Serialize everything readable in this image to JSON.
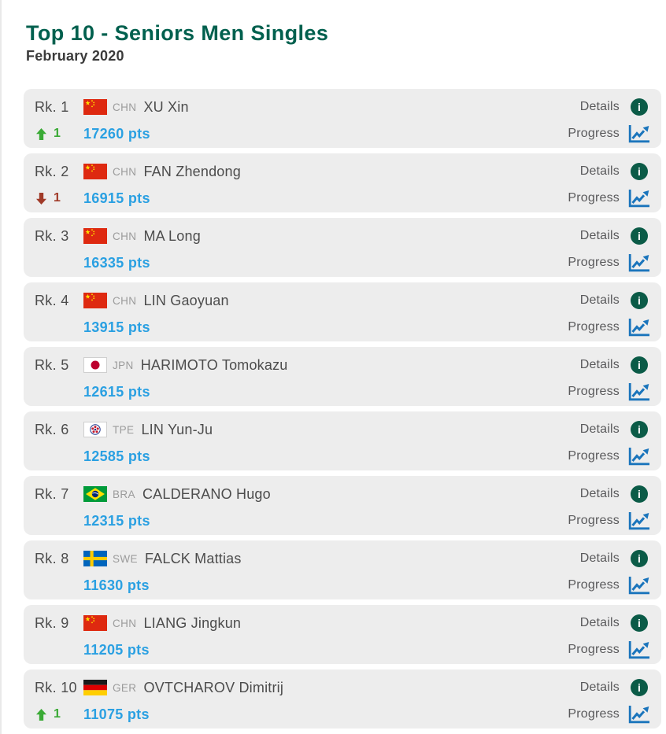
{
  "colors": {
    "title-green": "#00604E",
    "subtitle-dark": "#3B3B3B",
    "row-bg": "#EDEDED",
    "text-dark": "#4C4C4C",
    "country-gray": "#9B9B9B",
    "points-blue": "#2AA0E2",
    "up-green": "#3AAA35",
    "down-red": "#A03A28",
    "action-gray": "#59595B",
    "info-green": "#0B5B47",
    "chart-blue": "#1B75BC"
  },
  "header": {
    "title": "Top 10 - Seniors Men Singles",
    "subtitle": "February 2020"
  },
  "labels": {
    "details": "Details",
    "progress": "Progress",
    "info_icon_glyph": "i"
  },
  "players": [
    {
      "rank": "Rk. 1",
      "flag": "chn",
      "country_code": "CHN",
      "name": "XU Xin",
      "points": "17260 pts",
      "movement": {
        "direction": "up",
        "value": "1"
      }
    },
    {
      "rank": "Rk. 2",
      "flag": "chn",
      "country_code": "CHN",
      "name": "FAN Zhendong",
      "points": "16915 pts",
      "movement": {
        "direction": "down",
        "value": "1"
      }
    },
    {
      "rank": "Rk. 3",
      "flag": "chn",
      "country_code": "CHN",
      "name": "MA Long",
      "points": "16335 pts",
      "movement": null
    },
    {
      "rank": "Rk. 4",
      "flag": "chn",
      "country_code": "CHN",
      "name": "LIN Gaoyuan",
      "points": "13915 pts",
      "movement": null
    },
    {
      "rank": "Rk. 5",
      "flag": "jpn",
      "country_code": "JPN",
      "name": "HARIMOTO Tomokazu",
      "points": "12615 pts",
      "movement": null
    },
    {
      "rank": "Rk. 6",
      "flag": "tpe",
      "country_code": "TPE",
      "name": "LIN Yun-Ju",
      "points": "12585 pts",
      "movement": null
    },
    {
      "rank": "Rk. 7",
      "flag": "bra",
      "country_code": "BRA",
      "name": "CALDERANO Hugo",
      "points": "12315 pts",
      "movement": null
    },
    {
      "rank": "Rk. 8",
      "flag": "swe",
      "country_code": "SWE",
      "name": "FALCK Mattias",
      "points": "11630 pts",
      "movement": null
    },
    {
      "rank": "Rk. 9",
      "flag": "chn",
      "country_code": "CHN",
      "name": "LIANG Jingkun",
      "points": "11205 pts",
      "movement": null
    },
    {
      "rank": "Rk. 10",
      "flag": "ger",
      "country_code": "GER",
      "name": "OVTCHAROV Dimitrij",
      "points": "11075 pts",
      "movement": {
        "direction": "up",
        "value": "1"
      }
    }
  ]
}
